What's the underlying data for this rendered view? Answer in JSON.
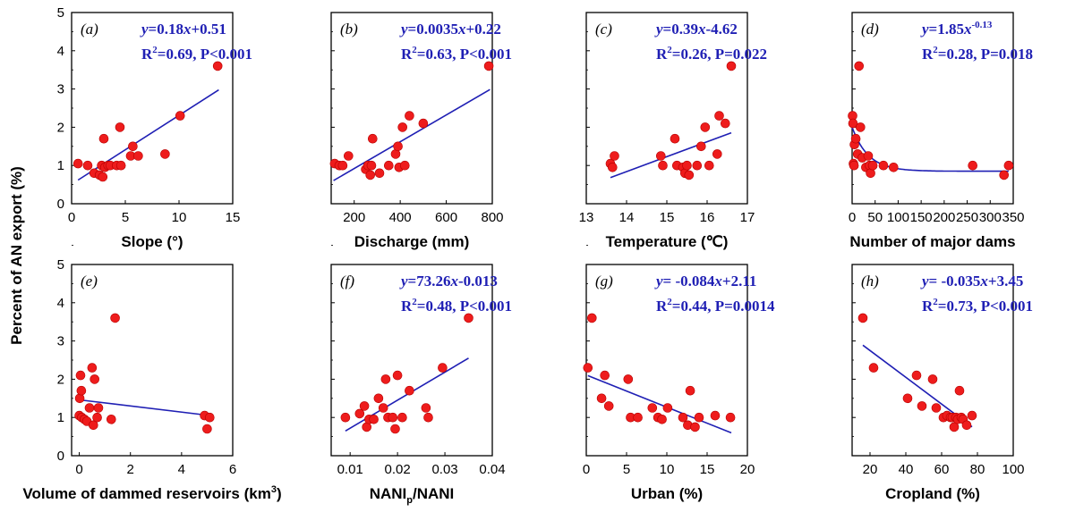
{
  "figure": {
    "ylabel": "Percent of AN export (%)",
    "colors": {
      "point": "#ee1c1c",
      "point_edge": "#b80000",
      "fit": "#1f1fb4",
      "axis": "#000000"
    }
  },
  "chart_data": [
    {
      "type": "scatter",
      "panel": "(a)",
      "xlabel": "Slope (°)",
      "ylabel": "Percent of AN export (%)",
      "xlim": [
        0,
        15
      ],
      "ylim": [
        0,
        5
      ],
      "xticks": [
        "0",
        "5",
        "10",
        "15"
      ],
      "yticks": [
        "0",
        "1",
        "2",
        "3",
        "4",
        "5"
      ],
      "equation": "y=0.18x+0.51",
      "stats": "R2=0.69, P<0.001",
      "fit": {
        "kind": "linear",
        "slope": 0.18,
        "intercept": 0.51,
        "xrange": [
          0.6,
          13.7
        ]
      },
      "x": [
        0.6,
        1.5,
        2.1,
        2.6,
        2.8,
        2.9,
        3.0,
        3.1,
        3.4,
        3.6,
        4.2,
        4.5,
        4.6,
        5.5,
        5.7,
        6.2,
        8.7,
        10.1,
        13.6
      ],
      "y": [
        1.05,
        1.0,
        0.8,
        0.75,
        1.0,
        0.7,
        1.7,
        0.95,
        1.0,
        1.0,
        1.0,
        2.0,
        1.0,
        1.25,
        1.5,
        1.25,
        1.3,
        2.3,
        3.6
      ]
    },
    {
      "type": "scatter",
      "panel": "(b)",
      "xlabel": "Discharge (mm)",
      "xlim": [
        100,
        800
      ],
      "ylim": [
        0,
        5
      ],
      "xticks": [
        "200",
        "400",
        "600",
        "800"
      ],
      "equation": "y=0.0035x+0.22",
      "stats": "R2=0.63, P<0.001",
      "fit": {
        "kind": "linear",
        "slope": 0.0035,
        "intercept": 0.22,
        "xrange": [
          110,
          790
        ]
      },
      "x": [
        115,
        135,
        150,
        175,
        250,
        260,
        270,
        275,
        280,
        310,
        350,
        380,
        390,
        395,
        410,
        420,
        440,
        500,
        785
      ],
      "y": [
        1.05,
        1.0,
        1.0,
        1.25,
        0.9,
        1.0,
        0.75,
        1.0,
        1.7,
        0.8,
        1.0,
        1.3,
        1.5,
        0.95,
        2.0,
        1.0,
        2.3,
        2.1,
        3.6
      ]
    },
    {
      "type": "scatter",
      "panel": "(c)",
      "xlabel": "Temperature (℃)",
      "xlim": [
        13,
        17
      ],
      "ylim": [
        0,
        5
      ],
      "xticks": [
        "13",
        "14",
        "15",
        "16",
        "17"
      ],
      "equation": "y=0.39x-4.62",
      "stats": "R2=0.26, P=0.022",
      "fit": {
        "kind": "linear",
        "slope": 0.39,
        "intercept": -4.62,
        "xrange": [
          13.6,
          16.6
        ]
      },
      "x": [
        13.6,
        13.65,
        13.7,
        14.85,
        14.9,
        15.2,
        15.25,
        15.4,
        15.45,
        15.5,
        15.55,
        15.75,
        15.85,
        15.95,
        16.05,
        16.25,
        16.3,
        16.45,
        16.6
      ],
      "y": [
        1.05,
        0.95,
        1.25,
        1.25,
        1.0,
        1.7,
        1.0,
        0.95,
        0.8,
        1.0,
        0.75,
        1.0,
        1.5,
        2.0,
        1.0,
        1.3,
        2.3,
        2.1,
        3.6
      ]
    },
    {
      "type": "scatter",
      "panel": "(d)",
      "xlabel": "Number of major dams",
      "xlim": [
        0,
        350
      ],
      "ylim": [
        0,
        5
      ],
      "xticks": [
        "0",
        "50",
        "100",
        "150",
        "200",
        "250",
        "300",
        "350"
      ],
      "equation": "y=1.85x^-0.13",
      "stats": "R2=0.28, P=0.018",
      "fit": {
        "kind": "decay",
        "xrange": [
          0,
          340
        ]
      },
      "x": [
        1,
        2,
        3,
        4,
        5,
        8,
        12,
        15,
        18,
        22,
        30,
        35,
        38,
        40,
        45,
        68,
        90,
        262,
        330,
        340
      ],
      "y": [
        2.3,
        2.1,
        1.05,
        1.0,
        1.55,
        1.7,
        1.3,
        3.6,
        2.0,
        1.2,
        0.95,
        1.25,
        1.0,
        0.8,
        1.0,
        1.0,
        0.95,
        1.0,
        0.75,
        1.0
      ]
    },
    {
      "type": "scatter",
      "panel": "(e)",
      "xlabel": "Volume of dammed reservoirs (km3)",
      "xlim": [
        -0.3,
        6
      ],
      "ylim": [
        0,
        5
      ],
      "xticks": [
        "0",
        "2",
        "4",
        "6"
      ],
      "fit": {
        "kind": "linear",
        "slope": -0.08,
        "intercept": 1.46,
        "xrange": [
          0,
          5.1
        ]
      },
      "x": [
        0.0,
        0.02,
        0.05,
        0.08,
        0.1,
        0.2,
        0.3,
        0.4,
        0.5,
        0.55,
        0.6,
        0.7,
        0.75,
        1.25,
        1.4,
        4.9,
        5.0,
        5.1
      ],
      "y": [
        1.05,
        1.5,
        2.1,
        1.7,
        1.0,
        0.95,
        0.9,
        1.25,
        2.3,
        0.8,
        2.0,
        1.0,
        1.25,
        0.95,
        3.6,
        1.05,
        0.7,
        1.0
      ]
    },
    {
      "type": "scatter",
      "panel": "(f)",
      "xlabel": "NANIp/NANI",
      "xlim": [
        0.006,
        0.04
      ],
      "ylim": [
        0,
        5
      ],
      "xticks": [
        "0.01",
        "0.02",
        "0.03",
        "0.04"
      ],
      "equation": "y=73.26x-0.013",
      "stats": "R2=0.48, P<0.001",
      "fit": {
        "kind": "linear",
        "slope": 73.26,
        "intercept": -0.013,
        "xrange": [
          0.009,
          0.035
        ]
      },
      "x": [
        0.009,
        0.012,
        0.013,
        0.0135,
        0.014,
        0.015,
        0.016,
        0.017,
        0.0175,
        0.018,
        0.019,
        0.0195,
        0.02,
        0.021,
        0.0225,
        0.026,
        0.0265,
        0.0295,
        0.035
      ],
      "y": [
        1.0,
        1.1,
        1.3,
        0.75,
        0.95,
        0.95,
        1.5,
        1.25,
        2.0,
        1.0,
        1.0,
        0.7,
        2.1,
        1.0,
        1.7,
        1.25,
        1.0,
        2.3,
        3.6
      ]
    },
    {
      "type": "scatter",
      "panel": "(g)",
      "xlabel": "Urban (%)",
      "xlim": [
        0,
        20
      ],
      "ylim": [
        0,
        5
      ],
      "xticks": [
        "0",
        "5",
        "10",
        "15",
        "20"
      ],
      "equation": "y= -0.084x+2.11",
      "stats": "R2=0.44, P=0.0014",
      "fit": {
        "kind": "linear",
        "slope": -0.084,
        "intercept": 2.11,
        "xrange": [
          0.2,
          18
        ]
      },
      "x": [
        0.2,
        0.7,
        1.9,
        2.3,
        2.8,
        5.2,
        5.5,
        6.4,
        8.2,
        8.9,
        9.4,
        10.1,
        12.0,
        12.6,
        12.9,
        13.5,
        14.0,
        16.0,
        17.9
      ],
      "y": [
        2.3,
        3.6,
        1.5,
        2.1,
        1.3,
        2.0,
        1.0,
        1.0,
        1.25,
        1.0,
        0.95,
        1.25,
        1.0,
        0.8,
        1.7,
        0.75,
        1.0,
        1.05,
        1.0
      ]
    },
    {
      "type": "scatter",
      "panel": "(h)",
      "xlabel": "Cropland (%)",
      "xlim": [
        10,
        100
      ],
      "ylim": [
        0,
        5
      ],
      "xticks": [
        "20",
        "40",
        "60",
        "80",
        "100"
      ],
      "equation": "y= -0.035x+3.45",
      "stats": "R2=0.73, P<0.001",
      "fit": {
        "kind": "linear",
        "slope": -0.035,
        "intercept": 3.45,
        "xrange": [
          16,
          77
        ]
      },
      "x": [
        16,
        22,
        41,
        46,
        49,
        55,
        57,
        61,
        63,
        65,
        66,
        67,
        68,
        69,
        70,
        71,
        72,
        74,
        77
      ],
      "y": [
        3.6,
        2.3,
        1.5,
        2.1,
        1.3,
        2.0,
        1.25,
        1.0,
        1.05,
        1.0,
        1.0,
        0.75,
        1.0,
        0.95,
        1.7,
        1.0,
        0.95,
        0.8,
        1.05
      ]
    }
  ]
}
